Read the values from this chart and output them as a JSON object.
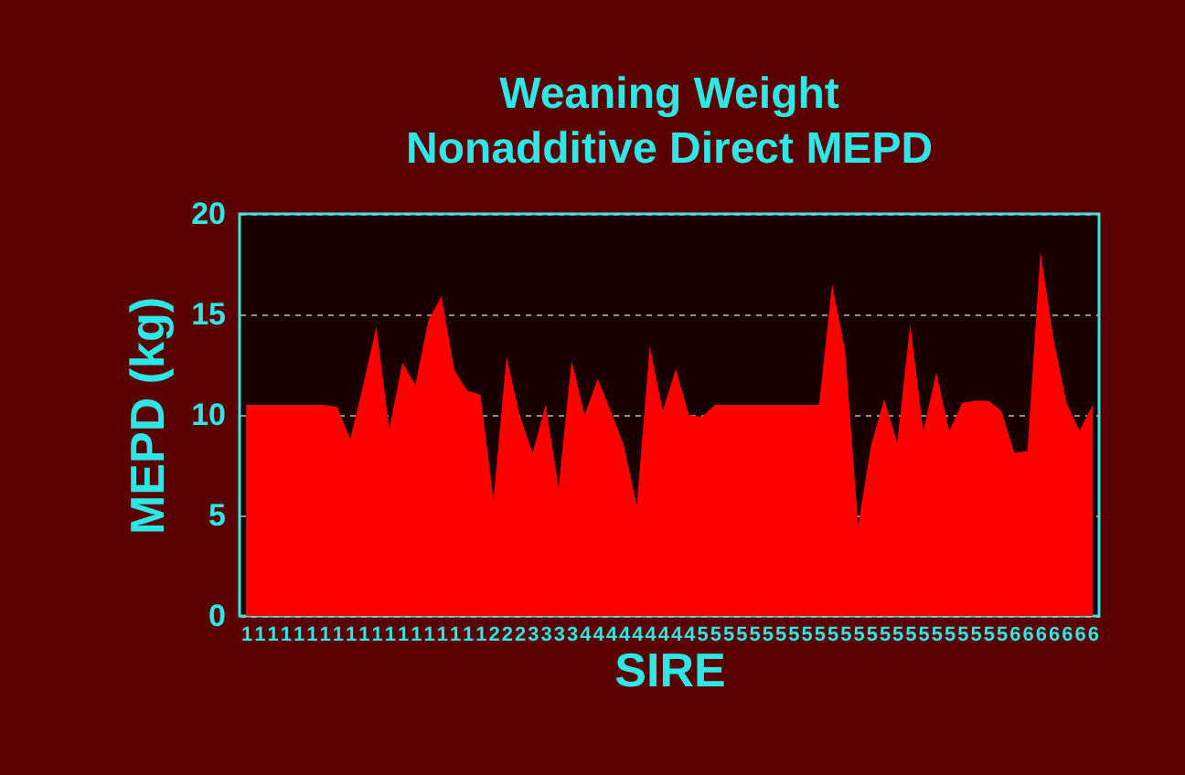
{
  "chart_data": {
    "type": "area",
    "title": [
      "Weaning Weight",
      "Nonadditive Direct MEPD"
    ],
    "xlabel": "SIRE",
    "ylabel": "MEPD (kg)",
    "categories": [
      "1",
      "1",
      "1",
      "1",
      "1",
      "1",
      "1",
      "1",
      "1",
      "1",
      "1",
      "1",
      "1",
      "1",
      "1",
      "1",
      "1",
      "1",
      "1",
      "2",
      "2",
      "2",
      "3",
      "3",
      "3",
      "3",
      "4",
      "4",
      "4",
      "4",
      "4",
      "4",
      "4",
      "4",
      "4",
      "5",
      "5",
      "5",
      "5",
      "5",
      "5",
      "5",
      "5",
      "5",
      "5",
      "5",
      "5",
      "5",
      "5",
      "5",
      "5",
      "5",
      "5",
      "5",
      "5",
      "5",
      "5",
      "5",
      "5",
      "6",
      "6",
      "6",
      "6",
      "6",
      "6",
      "6"
    ],
    "series": [
      {
        "color": "#ff0000",
        "values": [
          10.5,
          10.5,
          10.5,
          10.5,
          10.5,
          10.5,
          10.5,
          10.4,
          8.8,
          11.5,
          14.4,
          9.3,
          12.6,
          11.5,
          14.7,
          15.9,
          12.2,
          11.2,
          11.0,
          5.8,
          12.9,
          10.0,
          8.1,
          10.5,
          6.4,
          12.7,
          10.0,
          11.8,
          10.2,
          8.5,
          5.5,
          13.4,
          10.2,
          12.3,
          10.0,
          9.9,
          10.5,
          10.5,
          10.5,
          10.5,
          10.5,
          10.5,
          10.5,
          10.5,
          10.5,
          16.5,
          13.2,
          4.5,
          8.5,
          10.8,
          8.6,
          14.5,
          9.2,
          12.1,
          9.2,
          10.6,
          10.7,
          10.7,
          10.2,
          8.1,
          8.2,
          18.1,
          13.8,
          10.6,
          9.2,
          10.5
        ]
      }
    ],
    "ylim": [
      0,
      20
    ],
    "yticks": [
      0,
      5,
      10,
      15,
      20
    ],
    "grid": "y"
  }
}
